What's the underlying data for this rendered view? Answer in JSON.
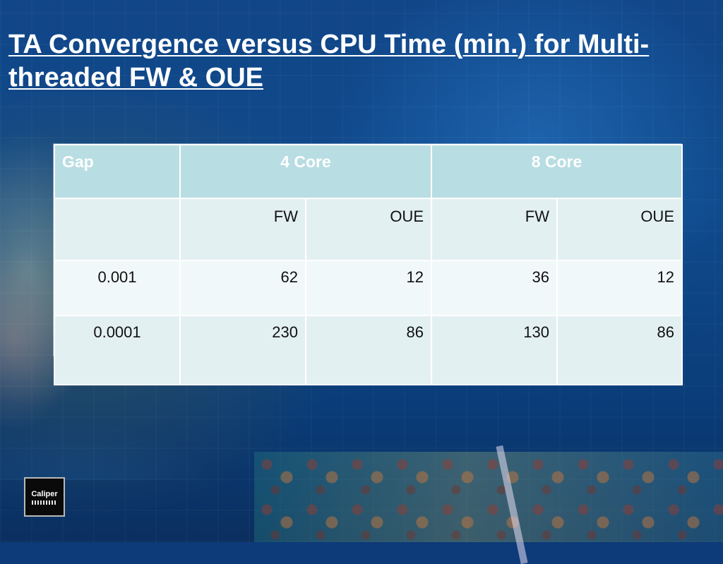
{
  "slide": {
    "title": "TA Convergence versus CPU Time (min.) for Multi-threaded FW & OUE",
    "logo_text": "Caliper"
  },
  "table": {
    "header": [
      "Gap",
      "4 Core",
      "8 Core"
    ],
    "subheader": [
      "",
      "FW",
      "OUE",
      "FW",
      "OUE"
    ],
    "rows": [
      [
        "0.001",
        "62",
        "12",
        "36",
        "12"
      ],
      [
        "0.0001",
        "230",
        "86",
        "130",
        "86"
      ]
    ]
  },
  "colors": {
    "header_bg": "#b8dde2",
    "row_bg_a": "#e3f0f2",
    "row_bg_b": "#f1f8f9",
    "title_text": "#ffffff"
  }
}
